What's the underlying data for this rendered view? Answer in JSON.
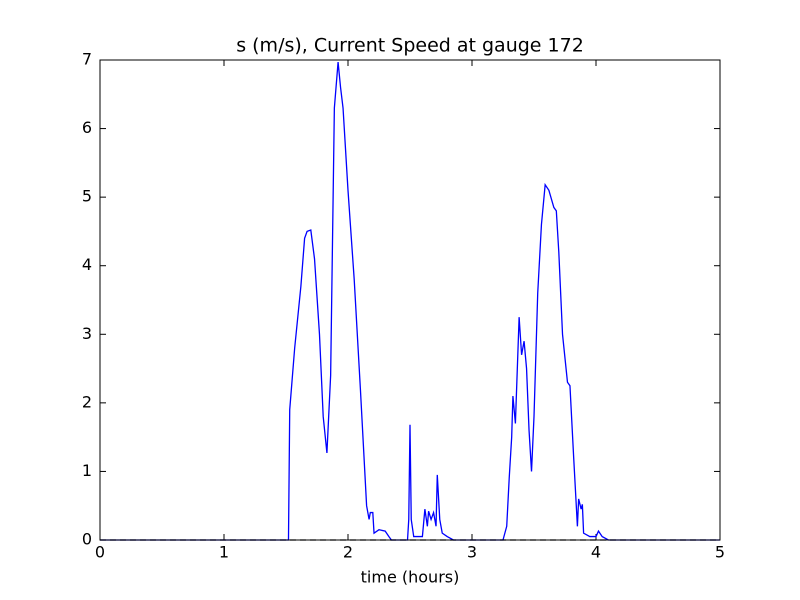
{
  "chart_data": {
    "type": "line",
    "title": "s (m/s), Current Speed at gauge 172",
    "xlabel": "time (hours)",
    "xlim": [
      0,
      5
    ],
    "xticks": [
      0,
      1,
      2,
      3,
      4,
      5
    ],
    "ylim": [
      0,
      7
    ],
    "yticks": [
      0,
      1,
      2,
      3,
      4,
      5,
      6,
      7
    ],
    "series": [
      {
        "color": "#0000ff",
        "dash": false,
        "x": [
          0,
          1.52,
          1.53,
          1.57,
          1.62,
          1.65,
          1.67,
          1.7,
          1.73,
          1.77,
          1.8,
          1.83,
          1.86,
          1.89,
          1.92,
          1.94,
          1.96,
          2.0,
          2.05,
          2.1,
          2.15,
          2.17,
          2.18,
          2.2,
          2.21,
          2.25,
          2.3,
          2.33,
          2.35,
          2.48,
          2.49,
          2.5,
          2.51,
          2.53,
          2.6,
          2.62,
          2.64,
          2.65,
          2.67,
          2.69,
          2.71,
          2.72,
          2.74,
          2.76,
          2.8,
          2.85,
          3.25,
          3.28,
          3.3,
          3.32,
          3.33,
          3.35,
          3.38,
          3.4,
          3.42,
          3.44,
          3.46,
          3.48,
          3.5,
          3.53,
          3.56,
          3.59,
          3.62,
          3.66,
          3.68,
          3.7,
          3.73,
          3.77,
          3.79,
          3.82,
          3.85,
          3.86,
          3.88,
          3.89,
          3.9,
          3.95,
          4.0,
          4.02,
          4.05,
          4.1,
          5
        ],
        "values": [
          0,
          0,
          1.9,
          2.8,
          3.7,
          4.4,
          4.5,
          4.52,
          4.1,
          3.0,
          1.8,
          1.27,
          2.4,
          6.3,
          6.97,
          6.6,
          6.3,
          5.1,
          3.8,
          2.2,
          0.5,
          0.3,
          0.4,
          0.4,
          0.1,
          0.15,
          0.13,
          0.05,
          0,
          0,
          0.3,
          1.68,
          0.3,
          0.05,
          0.05,
          0.45,
          0.2,
          0.42,
          0.3,
          0.4,
          0.2,
          0.95,
          0.3,
          0.1,
          0.05,
          0,
          0,
          0.2,
          0.9,
          1.5,
          2.1,
          1.7,
          3.25,
          2.7,
          2.9,
          2.5,
          1.6,
          1.0,
          1.8,
          3.6,
          4.6,
          5.18,
          5.1,
          4.85,
          4.8,
          4.2,
          3.0,
          2.3,
          2.25,
          1.2,
          0.2,
          0.6,
          0.45,
          0.52,
          0.1,
          0.05,
          0.05,
          0.13,
          0.05,
          0,
          0
        ]
      },
      {
        "color": "#000000",
        "dash": true,
        "x": [
          0,
          5
        ],
        "values": [
          0,
          0
        ]
      }
    ]
  }
}
